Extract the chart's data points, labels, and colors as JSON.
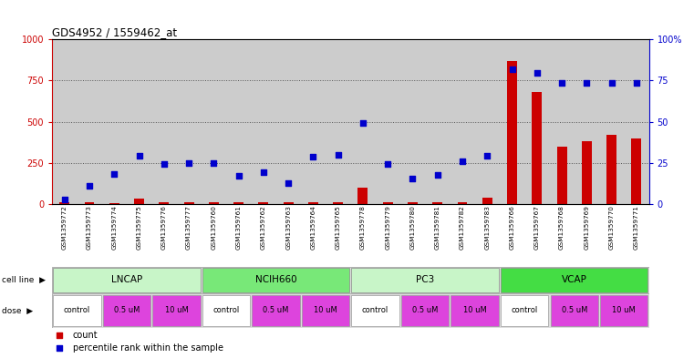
{
  "title": "GDS4952 / 1559462_at",
  "samples": [
    "GSM1359772",
    "GSM1359773",
    "GSM1359774",
    "GSM1359775",
    "GSM1359776",
    "GSM1359777",
    "GSM1359760",
    "GSM1359761",
    "GSM1359762",
    "GSM1359763",
    "GSM1359764",
    "GSM1359765",
    "GSM1359778",
    "GSM1359779",
    "GSM1359780",
    "GSM1359781",
    "GSM1359782",
    "GSM1359783",
    "GSM1359766",
    "GSM1359767",
    "GSM1359768",
    "GSM1359769",
    "GSM1359770",
    "GSM1359771"
  ],
  "counts": [
    10,
    12,
    8,
    35,
    10,
    10,
    10,
    10,
    10,
    10,
    10,
    10,
    100,
    10,
    10,
    10,
    10,
    40,
    870,
    680,
    350,
    380,
    420,
    400
  ],
  "percentiles_right": [
    2.5,
    11,
    18.5,
    29.5,
    24.5,
    25,
    25,
    17,
    19.5,
    13,
    28.5,
    30,
    49,
    24.5,
    15.5,
    17.5,
    26,
    29.5,
    82,
    79.5,
    73.5,
    73.5,
    73.5,
    73.5
  ],
  "cell_lines": [
    {
      "label": "LNCAP",
      "start": 0,
      "end": 6,
      "color": "#c8f5c8"
    },
    {
      "label": "NCIH660",
      "start": 6,
      "end": 12,
      "color": "#78e878"
    },
    {
      "label": "PC3",
      "start": 12,
      "end": 18,
      "color": "#c8f5c8"
    },
    {
      "label": "VCAP",
      "start": 18,
      "end": 24,
      "color": "#44dd44"
    }
  ],
  "dose_defs": [
    {
      "label": "control",
      "start": 0,
      "end": 2,
      "color": "#ffffff"
    },
    {
      "label": "0.5 uM",
      "start": 2,
      "end": 4,
      "color": "#dd44dd"
    },
    {
      "label": "10 uM",
      "start": 4,
      "end": 6,
      "color": "#dd44dd"
    },
    {
      "label": "control",
      "start": 6,
      "end": 8,
      "color": "#ffffff"
    },
    {
      "label": "0.5 uM",
      "start": 8,
      "end": 10,
      "color": "#dd44dd"
    },
    {
      "label": "10 uM",
      "start": 10,
      "end": 12,
      "color": "#dd44dd"
    },
    {
      "label": "control",
      "start": 12,
      "end": 14,
      "color": "#ffffff"
    },
    {
      "label": "0.5 uM",
      "start": 14,
      "end": 16,
      "color": "#dd44dd"
    },
    {
      "label": "10 uM",
      "start": 16,
      "end": 18,
      "color": "#dd44dd"
    },
    {
      "label": "control",
      "start": 18,
      "end": 20,
      "color": "#ffffff"
    },
    {
      "label": "0.5 uM",
      "start": 20,
      "end": 22,
      "color": "#dd44dd"
    },
    {
      "label": "10 uM",
      "start": 22,
      "end": 24,
      "color": "#dd44dd"
    }
  ],
  "ylim_left": [
    0,
    1000
  ],
  "ylim_right": [
    0,
    100
  ],
  "yticks_left": [
    0,
    250,
    500,
    750,
    1000
  ],
  "yticks_right": [
    0,
    25,
    50,
    75,
    100
  ],
  "bar_color": "#cc0000",
  "scatter_color": "#0000cc",
  "dotted_color": "#555555",
  "bg_color": "#ffffff",
  "sample_bg": "#cccccc"
}
